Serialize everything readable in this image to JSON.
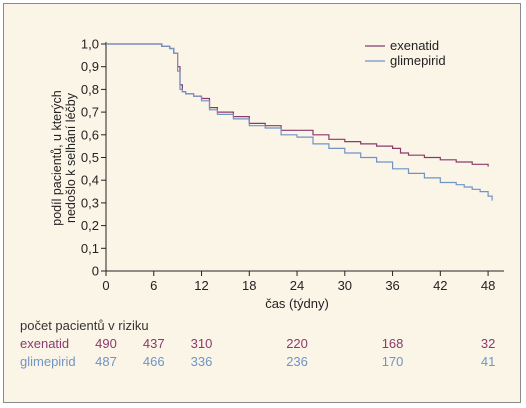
{
  "colors": {
    "background": "#fbf5e8",
    "axis": "#222222",
    "exenatid": "#8b3a6b",
    "glimepirid": "#6f94c6",
    "risk_title": "#333333"
  },
  "chart_data": {
    "type": "line",
    "title": "",
    "xlabel": "čas (týdny)",
    "ylabel_lines": [
      "podíl pacientů, u kterých",
      "nedošlo k selhání léčby"
    ],
    "xlim": [
      0,
      50
    ],
    "ylim": [
      0,
      1.0
    ],
    "xticks": [
      0,
      6,
      12,
      18,
      24,
      30,
      36,
      42,
      48
    ],
    "xtick_labels": [
      "0",
      "6",
      "12",
      "18",
      "24",
      "30",
      "36",
      "42",
      "48"
    ],
    "yticks": [
      0,
      0.1,
      0.2,
      0.3,
      0.4,
      0.5,
      0.6,
      0.7,
      0.8,
      0.9,
      1.0
    ],
    "ytick_labels": [
      "0",
      "0,1",
      "0,2",
      "0,3",
      "0,4",
      "0,5",
      "0,6",
      "0,7",
      "0,8",
      "0,9",
      "1,0"
    ],
    "legend_position": "top-right",
    "grid": false,
    "series": [
      {
        "name": "exenatid",
        "color": "#8b3a6b",
        "x": [
          0,
          6,
          7,
          8,
          8.5,
          9,
          9.3,
          9.6,
          10,
          11,
          12,
          13,
          14,
          16,
          18,
          20,
          22,
          24,
          26,
          28,
          30,
          32,
          34,
          36,
          37,
          38,
          40,
          42,
          44,
          46,
          48
        ],
        "y": [
          1.0,
          1.0,
          0.99,
          0.98,
          0.96,
          0.9,
          0.82,
          0.79,
          0.78,
          0.77,
          0.76,
          0.72,
          0.7,
          0.68,
          0.65,
          0.64,
          0.62,
          0.62,
          0.6,
          0.58,
          0.57,
          0.56,
          0.55,
          0.54,
          0.52,
          0.51,
          0.5,
          0.49,
          0.48,
          0.47,
          0.46
        ]
      },
      {
        "name": "glimepirid",
        "color": "#6f94c6",
        "x": [
          0,
          6,
          7,
          8,
          8.5,
          9,
          9.3,
          9.6,
          10,
          11,
          12,
          13,
          14,
          16,
          18,
          20,
          22,
          24,
          26,
          28,
          30,
          32,
          34,
          36,
          38,
          40,
          42,
          44,
          45,
          46,
          47,
          48,
          48.5
        ],
        "y": [
          1.0,
          1.0,
          0.99,
          0.98,
          0.96,
          0.88,
          0.8,
          0.79,
          0.78,
          0.77,
          0.75,
          0.71,
          0.69,
          0.67,
          0.64,
          0.63,
          0.6,
          0.59,
          0.56,
          0.54,
          0.52,
          0.5,
          0.48,
          0.45,
          0.43,
          0.41,
          0.39,
          0.38,
          0.37,
          0.36,
          0.35,
          0.33,
          0.31
        ]
      }
    ]
  },
  "risk_table": {
    "title": "počet pacientů v riziku",
    "rows": [
      {
        "name": "exenatid",
        "color": "#8b3a6b",
        "values": [
          "490",
          "437",
          "310",
          "220",
          "168",
          "32"
        ]
      },
      {
        "name": "glimepirid",
        "color": "#6f94c6",
        "values": [
          "487",
          "466",
          "336",
          "236",
          "170",
          "41"
        ]
      }
    ]
  }
}
